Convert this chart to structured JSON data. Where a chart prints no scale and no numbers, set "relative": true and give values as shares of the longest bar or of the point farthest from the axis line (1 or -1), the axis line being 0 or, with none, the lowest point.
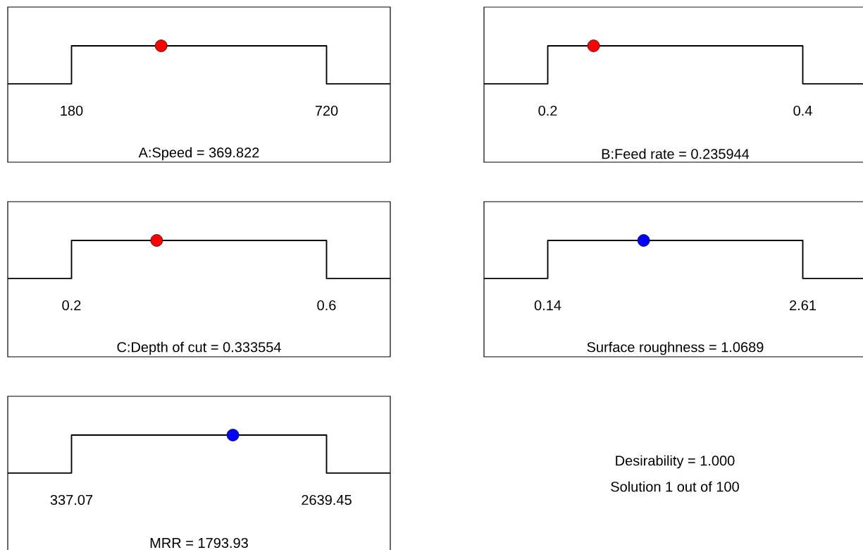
{
  "chart_data": [
    {
      "type": "line",
      "relative": true,
      "xlabel": "A:Speed = 369.822",
      "xlim": [
        45,
        855
      ],
      "xticks": [
        180,
        720
      ],
      "series": [
        {
          "type": "line",
          "color": "#000000",
          "x": [
            45,
            180,
            180,
            720,
            720,
            855
          ],
          "values": [
            0,
            0,
            1,
            1,
            0,
            0
          ]
        },
        {
          "type": "scatter",
          "color": "#ff0000",
          "marker": "circle",
          "x": [
            369.822
          ],
          "values": [
            1
          ]
        }
      ]
    },
    {
      "type": "line",
      "relative": true,
      "xlabel": "B:Feed rate = 0.235944",
      "xlim": [
        0.15,
        0.45
      ],
      "xticks": [
        0.2,
        0.4
      ],
      "series": [
        {
          "type": "line",
          "color": "#000000",
          "x": [
            0.15,
            0.2,
            0.2,
            0.4,
            0.4,
            0.45
          ],
          "values": [
            0,
            0,
            1,
            1,
            0,
            0
          ]
        },
        {
          "type": "scatter",
          "color": "#ff0000",
          "marker": "circle",
          "x": [
            0.235944
          ],
          "values": [
            1
          ]
        }
      ]
    },
    {
      "type": "line",
      "relative": true,
      "xlabel": "C:Depth of cut = 0.333554",
      "xlim": [
        0.1,
        0.7
      ],
      "xticks": [
        0.2,
        0.6
      ],
      "series": [
        {
          "type": "line",
          "color": "#000000",
          "x": [
            0.1,
            0.2,
            0.2,
            0.6,
            0.6,
            0.7
          ],
          "values": [
            0,
            0,
            1,
            1,
            0,
            0
          ]
        },
        {
          "type": "scatter",
          "color": "#ff0000",
          "marker": "circle",
          "x": [
            0.333554
          ],
          "values": [
            1
          ]
        }
      ]
    },
    {
      "type": "line",
      "relative": true,
      "xlabel": "Surface roughness = 1.0689",
      "xlim": [
        -0.4775,
        3.2275
      ],
      "xticks": [
        0.14,
        2.61
      ],
      "series": [
        {
          "type": "line",
          "color": "#000000",
          "x": [
            -0.4775,
            0.14,
            0.14,
            2.61,
            2.61,
            3.2275
          ],
          "values": [
            0,
            0,
            1,
            1,
            0,
            0
          ]
        },
        {
          "type": "scatter",
          "color": "#0000ff",
          "marker": "circle",
          "x": [
            1.0689
          ],
          "values": [
            1
          ]
        }
      ]
    },
    {
      "type": "line",
      "relative": true,
      "xlabel": "MRR = 1793.93",
      "xlim": [
        -238.525,
        3215.045
      ],
      "xticks": [
        337.07,
        2639.45
      ],
      "series": [
        {
          "type": "line",
          "color": "#000000",
          "x": [
            -238.525,
            337.07,
            337.07,
            2639.45,
            2639.45,
            3215.045
          ],
          "values": [
            0,
            0,
            1,
            1,
            0,
            0
          ]
        },
        {
          "type": "scatter",
          "color": "#0000ff",
          "marker": "circle",
          "x": [
            1793.93
          ],
          "values": [
            1
          ]
        }
      ]
    },
    {
      "type": "other",
      "annotations": [
        "Desirability = 1.000",
        "Solution 1 out of 100"
      ]
    }
  ]
}
